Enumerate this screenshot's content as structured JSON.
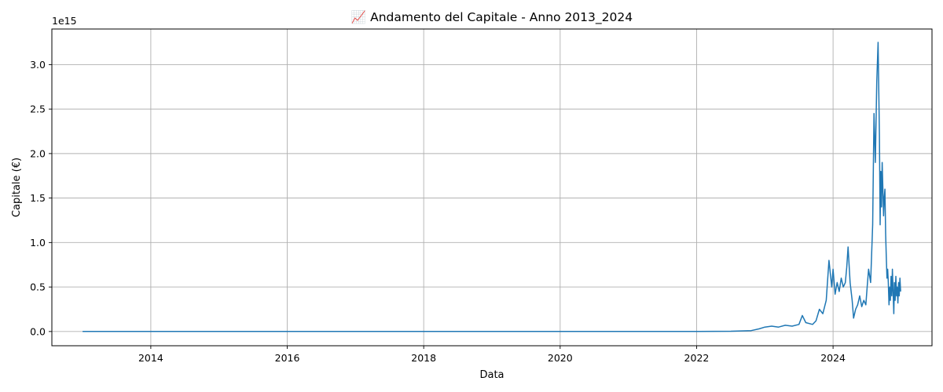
{
  "chart_data": {
    "type": "line",
    "title": "📈 Andamento del Capitale - Anno 2013_2024",
    "xlabel": "Data",
    "ylabel": "Capitale (€)",
    "y_offset_label": "1e15",
    "y_scale_exponent": 15,
    "grid": true,
    "x_ticks": [
      2014,
      2016,
      2018,
      2020,
      2022,
      2024
    ],
    "y_ticks": [
      0.0,
      0.5,
      1.0,
      1.5,
      2.0,
      2.5,
      3.0
    ],
    "y_tick_labels": [
      "0.0",
      "0.5",
      "1.0",
      "1.5",
      "2.0",
      "2.5",
      "3.0"
    ],
    "xlim": [
      2012.55,
      2025.45
    ],
    "ylim": [
      -0.16,
      3.4
    ],
    "series": [
      {
        "color": "#1f77b4",
        "x": [
          2013.0,
          2016.0,
          2019.0,
          2022.0,
          2022.5,
          2022.8,
          2022.92,
          2023.0,
          2023.1,
          2023.2,
          2023.3,
          2023.4,
          2023.5,
          2023.55,
          2023.6,
          2023.7,
          2023.75,
          2023.8,
          2023.85,
          2023.9,
          2023.94,
          2023.98,
          2024.0,
          2024.03,
          2024.06,
          2024.09,
          2024.12,
          2024.15,
          2024.18,
          2024.2,
          2024.22,
          2024.25,
          2024.28,
          2024.3,
          2024.33,
          2024.36,
          2024.39,
          2024.42,
          2024.45,
          2024.48,
          2024.5,
          2024.52,
          2024.55,
          2024.58,
          2024.6,
          2024.62,
          2024.64,
          2024.66,
          2024.68,
          2024.69,
          2024.7,
          2024.71,
          2024.72,
          2024.73,
          2024.74,
          2024.75,
          2024.76,
          2024.77,
          2024.78,
          2024.79,
          2024.8,
          2024.81,
          2024.82,
          2024.83,
          2024.84,
          2024.85,
          2024.86,
          2024.87,
          2024.88,
          2024.89,
          2024.9,
          2024.91,
          2024.92,
          2024.93,
          2024.94,
          2024.95,
          2024.96,
          2024.97,
          2024.98,
          2024.99
        ],
        "y": [
          0.0,
          0.0,
          0.0,
          0.0,
          0.003,
          0.01,
          0.03,
          0.05,
          0.06,
          0.05,
          0.07,
          0.06,
          0.08,
          0.18,
          0.1,
          0.08,
          0.12,
          0.25,
          0.2,
          0.35,
          0.8,
          0.5,
          0.7,
          0.42,
          0.55,
          0.45,
          0.6,
          0.5,
          0.55,
          0.72,
          0.95,
          0.55,
          0.35,
          0.15,
          0.25,
          0.3,
          0.4,
          0.28,
          0.35,
          0.3,
          0.5,
          0.7,
          0.55,
          1.2,
          2.45,
          1.9,
          2.8,
          3.25,
          2.2,
          1.2,
          1.8,
          1.4,
          1.9,
          1.6,
          1.3,
          1.5,
          1.6,
          1.1,
          0.85,
          0.6,
          0.7,
          0.55,
          0.3,
          0.5,
          0.35,
          0.62,
          0.4,
          0.7,
          0.45,
          0.2,
          0.55,
          0.35,
          0.62,
          0.4,
          0.5,
          0.32,
          0.55,
          0.4,
          0.6,
          0.45
        ]
      }
    ]
  }
}
